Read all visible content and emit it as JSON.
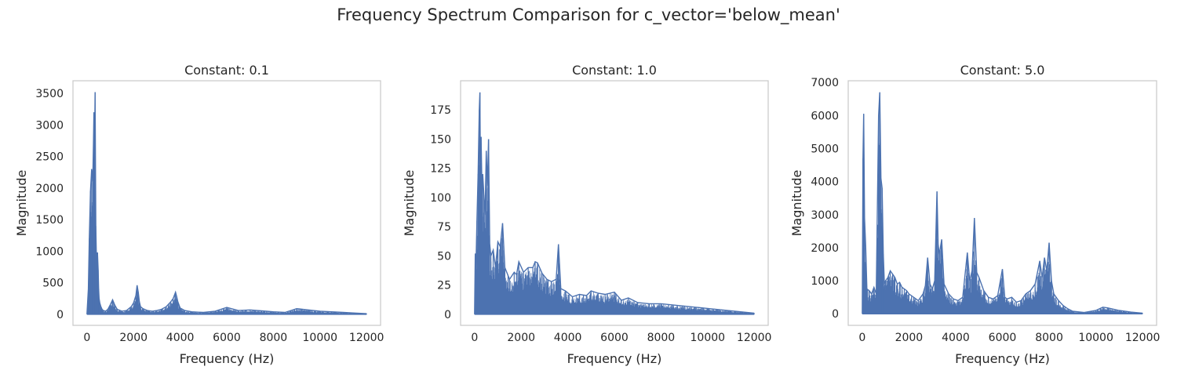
{
  "figure": {
    "title": "Frequency Spectrum Comparison for c_vector='below_mean'"
  },
  "colors": {
    "line": "#4c72b0",
    "frame": "#cccccc",
    "text": "#262626"
  },
  "chart_data": [
    {
      "type": "line",
      "title": "Constant: 0.1",
      "xlabel": "Frequency (Hz)",
      "ylabel": "Magnitude",
      "xlim": [
        -600,
        12600
      ],
      "ylim": [
        -175,
        3700
      ],
      "xticks": [
        0,
        2000,
        4000,
        6000,
        8000,
        10000,
        12000
      ],
      "yticks": [
        0,
        500,
        1000,
        1500,
        2000,
        2500,
        3000,
        3500
      ],
      "grid": false,
      "series": [
        {
          "x": [
            0,
            60,
            100,
            150,
            200,
            250,
            280,
            300,
            330,
            350,
            380,
            400,
            420,
            450,
            480,
            500,
            520,
            550,
            600,
            650,
            700,
            800,
            900,
            1000,
            1100,
            1200,
            1300,
            1500,
            1700,
            1900,
            2000,
            2100,
            2150,
            2200,
            2250,
            2300,
            2400,
            2600,
            2800,
            3000,
            3200,
            3400,
            3600,
            3700,
            3800,
            3850,
            3900,
            4000,
            4200,
            4500,
            5000,
            5500,
            6000,
            6500,
            7000,
            7500,
            8000,
            8500,
            9000,
            9500,
            10000,
            10500,
            11000,
            11500,
            12000
          ],
          "y": [
            0,
            400,
            1200,
            1950,
            2300,
            2100,
            2700,
            3200,
            2750,
            3520,
            1400,
            1000,
            600,
            980,
            700,
            400,
            250,
            180,
            120,
            80,
            60,
            50,
            80,
            150,
            230,
            140,
            80,
            50,
            60,
            120,
            180,
            300,
            460,
            350,
            200,
            120,
            90,
            60,
            50,
            60,
            80,
            120,
            200,
            250,
            350,
            280,
            200,
            100,
            60,
            40,
            30,
            50,
            110,
            60,
            70,
            55,
            40,
            30,
            90,
            70,
            50,
            40,
            30,
            20,
            10
          ]
        }
      ]
    },
    {
      "type": "line",
      "title": "Constant: 1.0",
      "xlabel": "Frequency (Hz)",
      "ylabel": "Magnitude",
      "xlim": [
        -600,
        12600
      ],
      "ylim": [
        -9.5,
        200
      ],
      "xticks": [
        0,
        2000,
        4000,
        6000,
        8000,
        10000,
        12000
      ],
      "yticks": [
        0,
        25,
        50,
        75,
        100,
        125,
        150,
        175
      ],
      "grid": false,
      "series": [
        {
          "x": [
            0,
            30,
            60,
            100,
            150,
            200,
            230,
            250,
            280,
            320,
            350,
            400,
            450,
            500,
            550,
            600,
            650,
            700,
            800,
            900,
            1000,
            1100,
            1200,
            1300,
            1500,
            1700,
            1800,
            1900,
            2100,
            2300,
            2500,
            2600,
            2700,
            2900,
            3100,
            3300,
            3500,
            3600,
            3700,
            3900,
            4200,
            4500,
            4800,
            5000,
            5300,
            5600,
            6000,
            6300,
            6600,
            7000,
            7500,
            8000,
            8500,
            9000,
            9500,
            10000,
            10500,
            11000,
            11500,
            12000
          ],
          "y": [
            0,
            52,
            42,
            80,
            120,
            175,
            190,
            130,
            152,
            105,
            120,
            102,
            85,
            140,
            110,
            150,
            60,
            50,
            55,
            40,
            62,
            58,
            78,
            40,
            30,
            36,
            34,
            45,
            36,
            40,
            40,
            45,
            44,
            35,
            30,
            28,
            30,
            60,
            22,
            20,
            15,
            17,
            16,
            20,
            18,
            17,
            19,
            12,
            14,
            10,
            9,
            9,
            8,
            7,
            6,
            5,
            4,
            3,
            2,
            1
          ]
        }
      ]
    },
    {
      "type": "line",
      "title": "Constant: 5.0",
      "xlabel": "Frequency (Hz)",
      "ylabel": "Magnitude",
      "xlim": [
        -600,
        12600
      ],
      "ylim": [
        -350,
        7050
      ],
      "xticks": [
        0,
        2000,
        4000,
        6000,
        8000,
        10000,
        12000
      ],
      "yticks": [
        0,
        1000,
        2000,
        3000,
        4000,
        5000,
        6000,
        7000
      ],
      "grid": false,
      "series": [
        {
          "x": [
            0,
            30,
            60,
            100,
            150,
            200,
            300,
            400,
            500,
            600,
            700,
            750,
            800,
            850,
            900,
            950,
            1000,
            1100,
            1200,
            1300,
            1400,
            1500,
            1600,
            1700,
            1800,
            1900,
            2000,
            2200,
            2400,
            2600,
            2700,
            2800,
            2900,
            3000,
            3100,
            3200,
            3250,
            3300,
            3400,
            3500,
            3700,
            3900,
            4100,
            4300,
            4500,
            4600,
            4700,
            4800,
            4900,
            5000,
            5200,
            5400,
            5600,
            5800,
            6000,
            6100,
            6200,
            6400,
            6600,
            6800,
            7000,
            7200,
            7400,
            7600,
            7700,
            7800,
            7900,
            8000,
            8100,
            8200,
            8400,
            8600,
            8800,
            9000,
            9500,
            10000,
            10300,
            10500,
            11000,
            11500,
            12000
          ],
          "y": [
            0,
            4700,
            6050,
            2900,
            2000,
            750,
            700,
            600,
            800,
            600,
            6000,
            6700,
            4100,
            3800,
            1800,
            900,
            1000,
            1100,
            1300,
            1200,
            1100,
            900,
            950,
            800,
            750,
            700,
            600,
            500,
            400,
            600,
            850,
            1700,
            900,
            750,
            1000,
            3700,
            2100,
            1800,
            2250,
            900,
            600,
            450,
            400,
            500,
            1850,
            1000,
            1300,
            2900,
            1250,
            1100,
            700,
            500,
            450,
            550,
            1350,
            500,
            450,
            500,
            350,
            400,
            600,
            700,
            900,
            1600,
            1100,
            1700,
            1300,
            2150,
            1000,
            600,
            400,
            250,
            150,
            80,
            40,
            100,
            200,
            180,
            100,
            50,
            20
          ]
        }
      ]
    }
  ]
}
